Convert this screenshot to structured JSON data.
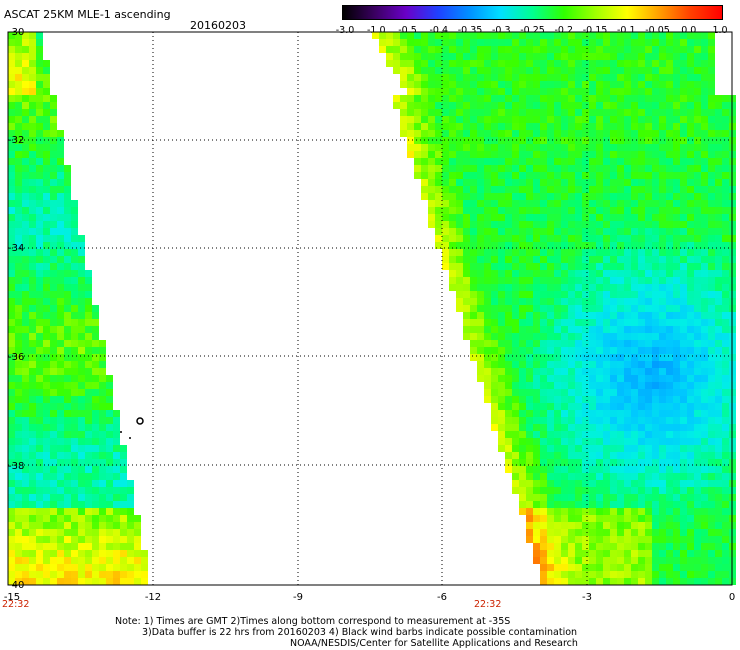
{
  "header": {
    "title": "ASCAT 25KM MLE-1 ascending",
    "date": "20160203"
  },
  "colorbar": {
    "labels": [
      "-3.0",
      "-1.0",
      "-0.5",
      "-0.4",
      "-0.35",
      "-0.3",
      "-0.25",
      "-0.2",
      "-0.15",
      "-0.1",
      "-0.05",
      "0.0",
      "1.0"
    ],
    "colors": [
      "#000000",
      "#3a0060",
      "#6a00c8",
      "#2040ff",
      "#0090ff",
      "#00e0ff",
      "#00ff90",
      "#30ff00",
      "#a0ff00",
      "#ffff00",
      "#ffa000",
      "#ff4000",
      "#ff0000"
    ]
  },
  "axes": {
    "x_ticks": [
      "-15",
      "-12",
      "-9",
      "-6",
      "-3",
      "0"
    ],
    "y_ticks": [
      "-30",
      "-32",
      "-34",
      "-36",
      "-38",
      "-40"
    ],
    "x_range": [
      -15,
      0
    ],
    "y_range": [
      -30,
      -40
    ]
  },
  "times": {
    "left": "22:32",
    "middle": "22:32"
  },
  "notes": {
    "line1": "Note: 1) Times are GMT 2)Times along bottom correspond to measurement at -35S",
    "line2": "3)Data buffer is 22 hrs from 20160203 4) Black wind barbs indicate possible contamination",
    "line3": "NOAA/NESDIS/Center for Satellite Applications and Research"
  }
}
